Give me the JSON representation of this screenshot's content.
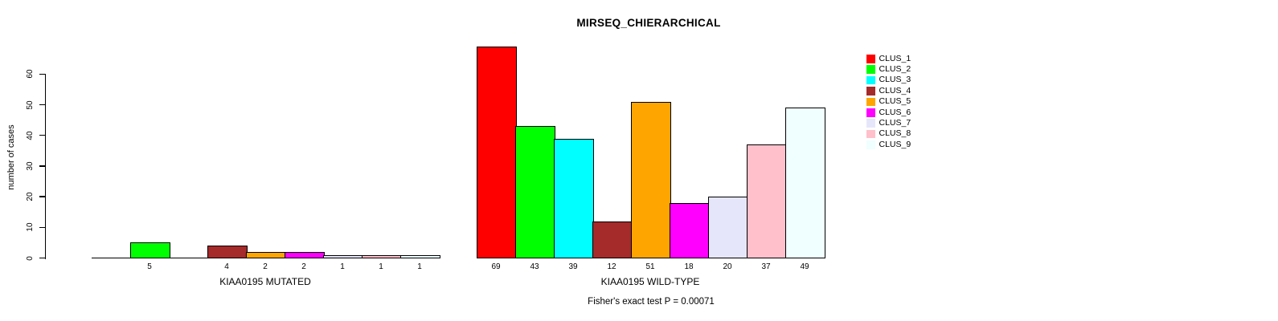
{
  "chart_data": {
    "type": "bar",
    "title": "MIRSEQ_CHIERARCHICAL",
    "ylabel": "number of cases",
    "xlabel": "",
    "categories": [
      "KIAA0195 MUTATED",
      "KIAA0195 WILD-TYPE"
    ],
    "series": [
      {
        "name": "CLUS_1",
        "color": "#FF0000",
        "values": [
          0,
          69
        ]
      },
      {
        "name": "CLUS_2",
        "color": "#00FF00",
        "values": [
          5,
          43
        ]
      },
      {
        "name": "CLUS_3",
        "color": "#00FFFF",
        "values": [
          0,
          39
        ]
      },
      {
        "name": "CLUS_4",
        "color": "#A52A2A",
        "values": [
          4,
          12
        ]
      },
      {
        "name": "CLUS_5",
        "color": "#FFA500",
        "values": [
          2,
          51
        ]
      },
      {
        "name": "CLUS_6",
        "color": "#FF00FF",
        "values": [
          2,
          18
        ]
      },
      {
        "name": "CLUS_7",
        "color": "#E6E6FA",
        "values": [
          1,
          20
        ]
      },
      {
        "name": "CLUS_8",
        "color": "#FFC0CB",
        "values": [
          1,
          37
        ]
      },
      {
        "name": "CLUS_9",
        "color": "#F0FFFF",
        "values": [
          1,
          49
        ]
      }
    ],
    "yticks": [
      0,
      10,
      20,
      30,
      40,
      50,
      60
    ],
    "ylim": [
      0,
      69
    ],
    "grid": false,
    "legend_position": "right",
    "bar_value_labels": true,
    "zero_value_bars_hidden": true,
    "annotation": "Fisher's exact test P = 0.00071"
  }
}
